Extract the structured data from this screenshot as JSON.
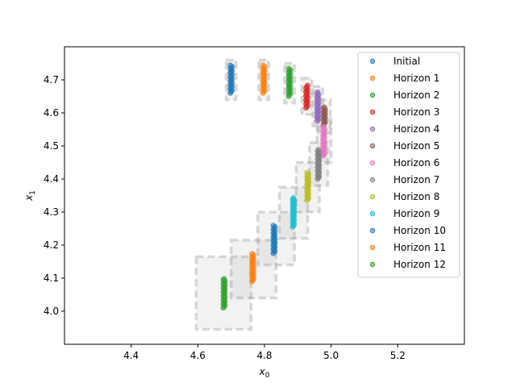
{
  "chart_data": {
    "type": "scatter",
    "xlabel_main": "x",
    "xlabel_sub": "0",
    "ylabel_main": "x",
    "ylabel_sub": "1",
    "xlim": [
      4.2,
      5.4
    ],
    "ylim": [
      3.9,
      4.8
    ],
    "x_ticks": [
      4.4,
      4.6,
      4.8,
      5.0,
      5.2
    ],
    "x_tick_labels": [
      "4.4",
      "4.6",
      "4.8",
      "5.0",
      "5.2"
    ],
    "y_ticks": [
      4.0,
      4.1,
      4.2,
      4.3,
      4.4,
      4.5,
      4.6,
      4.7
    ],
    "y_tick_labels": [
      "4.0",
      "4.1",
      "4.2",
      "4.3",
      "4.4",
      "4.5",
      "4.6",
      "4.7"
    ],
    "grid": false,
    "legend_position": "upper-right",
    "series": [
      {
        "name": "Initial",
        "color": "#1f77b4",
        "x": 4.7,
        "y_range": [
          4.66,
          4.745
        ]
      },
      {
        "name": "Horizon 1",
        "color": "#ff7f0e",
        "x": 4.798,
        "y_range": [
          4.66,
          4.745
        ]
      },
      {
        "name": "Horizon 2",
        "color": "#2ca02c",
        "x": 4.875,
        "y_range": [
          4.65,
          4.735
        ]
      },
      {
        "name": "Horizon 3",
        "color": "#d62728",
        "x": 4.927,
        "y_range": [
          4.615,
          4.685
        ]
      },
      {
        "name": "Horizon 4",
        "color": "#9467bd",
        "x": 4.96,
        "y_range": [
          4.575,
          4.665
        ]
      },
      {
        "name": "Horizon 5",
        "color": "#8c564b",
        "x": 4.98,
        "y_range": [
          4.565,
          4.62
        ]
      },
      {
        "name": "Horizon 6",
        "color": "#e377c2",
        "x": 4.978,
        "y_range": [
          4.47,
          4.56
        ]
      },
      {
        "name": "Horizon 7",
        "color": "#7f7f7f",
        "x": 4.962,
        "y_range": [
          4.4,
          4.49
        ]
      },
      {
        "name": "Horizon 8",
        "color": "#bcbd22",
        "x": 4.93,
        "y_range": [
          4.335,
          4.42
        ]
      },
      {
        "name": "Horizon 9",
        "color": "#17becf",
        "x": 4.887,
        "y_range": [
          4.255,
          4.345
        ]
      },
      {
        "name": "Horizon 10",
        "color": "#1f77b4",
        "x": 4.829,
        "y_range": [
          4.175,
          4.26
        ]
      },
      {
        "name": "Horizon 11",
        "color": "#ff7f0e",
        "x": 4.765,
        "y_range": [
          4.09,
          4.175
        ]
      },
      {
        "name": "Horizon 12",
        "color": "#2ca02c",
        "x": 4.679,
        "y_range": [
          4.01,
          4.1
        ]
      }
    ],
    "reachable_boxes": [
      {
        "x": [
          4.685,
          4.715
        ],
        "y": [
          4.64,
          4.76
        ]
      },
      {
        "x": [
          4.783,
          4.813
        ],
        "y": [
          4.64,
          4.76
        ]
      },
      {
        "x": [
          4.86,
          4.89
        ],
        "y": [
          4.63,
          4.75
        ]
      },
      {
        "x": [
          4.912,
          4.942
        ],
        "y": [
          4.595,
          4.705
        ]
      },
      {
        "x": [
          4.945,
          4.975
        ],
        "y": [
          4.56,
          4.68
        ]
      },
      {
        "x": [
          4.962,
          4.998
        ],
        "y": [
          4.54,
          4.64
        ]
      },
      {
        "x": [
          4.958,
          5.0
        ],
        "y": [
          4.45,
          4.58
        ]
      },
      {
        "x": [
          4.935,
          4.99
        ],
        "y": [
          4.38,
          4.51
        ]
      },
      {
        "x": [
          4.895,
          4.965
        ],
        "y": [
          4.3,
          4.45
        ]
      },
      {
        "x": [
          4.845,
          4.93
        ],
        "y": [
          4.22,
          4.375
        ]
      },
      {
        "x": [
          4.78,
          4.89
        ],
        "y": [
          4.14,
          4.3
        ]
      },
      {
        "x": [
          4.7,
          4.835
        ],
        "y": [
          4.04,
          4.215
        ]
      },
      {
        "x": [
          4.595,
          4.76
        ],
        "y": [
          3.945,
          4.165
        ]
      }
    ]
  }
}
